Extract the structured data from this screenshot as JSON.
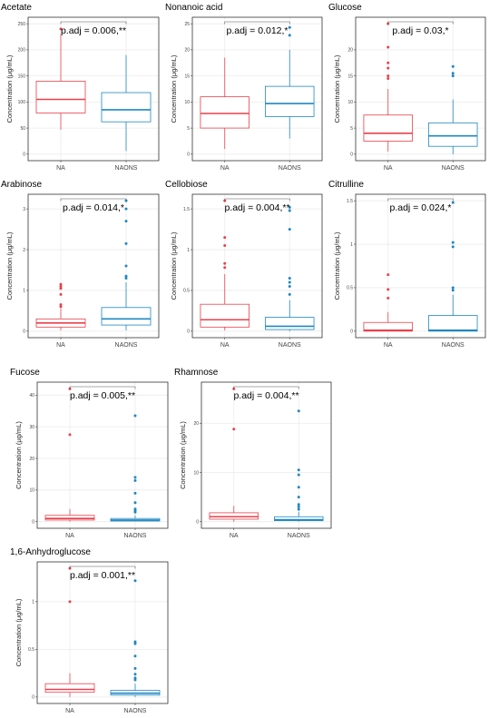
{
  "colors": {
    "NA": "#e8414b",
    "NAONS": "#1f87c2",
    "grid": "#ebebeb",
    "frame": "#333333",
    "bracket": "#555555"
  },
  "chart_data": [
    {
      "type": "box",
      "title": "Acetate",
      "ylabel": "Concentration (μg/mL)",
      "categories": [
        "NA",
        "NAONS"
      ],
      "ylim": [
        0,
        250
      ],
      "yticks": [
        0,
        50,
        100,
        150,
        200,
        250
      ],
      "annotation": "p.adj = 0.006,**",
      "boxes": [
        {
          "name": "NA",
          "min": 47,
          "q1": 79,
          "median": 105,
          "q3": 140,
          "max": 230,
          "outliers": [
            240
          ]
        },
        {
          "name": "NAONS",
          "min": 6,
          "q1": 62,
          "median": 85,
          "q3": 118,
          "max": 190,
          "outliers": []
        }
      ]
    },
    {
      "type": "box",
      "title": "Nonanoic acid",
      "ylabel": "Concentration (μg/mL)",
      "categories": [
        "NA",
        "NAONS"
      ],
      "ylim": [
        0,
        25
      ],
      "yticks": [
        0,
        5,
        10,
        15,
        20,
        25
      ],
      "annotation": "p.adj = 0.012,*",
      "boxes": [
        {
          "name": "NA",
          "min": 1,
          "q1": 5,
          "median": 7.8,
          "q3": 11,
          "max": 18.5,
          "outliers": []
        },
        {
          "name": "NAONS",
          "min": 3,
          "q1": 7.2,
          "median": 9.7,
          "q3": 13,
          "max": 20,
          "outliers": [
            24.3,
            22.8
          ]
        }
      ]
    },
    {
      "type": "box",
      "title": "Glucose",
      "ylabel": "Concentration (μg/mL)",
      "categories": [
        "NA",
        "NAONS"
      ],
      "ylim": [
        0,
        25
      ],
      "yticks": [
        0,
        5,
        10,
        15,
        20
      ],
      "annotation": "p.adj = 0.03,*",
      "boxes": [
        {
          "name": "NA",
          "min": 0.5,
          "q1": 2.5,
          "median": 4,
          "q3": 7.5,
          "max": 12.5,
          "outliers": [
            25,
            20.5,
            17.5,
            16.5,
            15,
            14.5
          ]
        },
        {
          "name": "NAONS",
          "min": 0,
          "q1": 1.5,
          "median": 3.5,
          "q3": 6,
          "max": 10.5,
          "outliers": [
            16.8,
            15.5,
            15
          ]
        }
      ]
    },
    {
      "type": "box",
      "title": "Arabinose",
      "ylabel": "Concentration (μg/mL)",
      "categories": [
        "NA",
        "NAONS"
      ],
      "ylim": [
        0,
        3.2
      ],
      "yticks": [
        0,
        1,
        2,
        3
      ],
      "annotation": "p.adj = 0.014,*",
      "boxes": [
        {
          "name": "NA",
          "min": 0.02,
          "q1": 0.1,
          "median": 0.2,
          "q3": 0.3,
          "max": 0.55,
          "outliers": [
            1.15,
            1.1,
            1.05,
            0.9,
            0.65,
            0.6
          ]
        },
        {
          "name": "NAONS",
          "min": 0.02,
          "q1": 0.15,
          "median": 0.3,
          "q3": 0.58,
          "max": 1.2,
          "outliers": [
            3.2,
            3.0,
            2.7,
            2.15,
            1.6,
            1.35,
            1.3
          ]
        }
      ]
    },
    {
      "type": "box",
      "title": "Cellobiose",
      "ylabel": "Concentration (μg/mL)",
      "categories": [
        "NA",
        "NAONS"
      ],
      "ylim": [
        0,
        1.6
      ],
      "yticks": [
        0,
        0.5,
        1.0,
        1.5
      ],
      "annotation": "p.adj = 0.004,**",
      "boxes": [
        {
          "name": "NA",
          "min": 0.01,
          "q1": 0.05,
          "median": 0.14,
          "q3": 0.33,
          "max": 0.7,
          "outliers": [
            1.6,
            1.15,
            1.05,
            0.83,
            0.78
          ]
        },
        {
          "name": "NAONS",
          "min": 0.0,
          "q1": 0.02,
          "median": 0.06,
          "q3": 0.17,
          "max": 0.38,
          "outliers": [
            1.52,
            1.48,
            1.25,
            0.65,
            0.6,
            0.55,
            0.45
          ]
        }
      ]
    },
    {
      "type": "box",
      "title": "Citrulline",
      "ylabel": "Concentration (μg/mL)",
      "categories": [
        "NA",
        "NAONS"
      ],
      "ylim": [
        0,
        1.5
      ],
      "yticks": [
        0,
        0.5,
        1.0,
        1.5
      ],
      "annotation": "p.adj = 0.024,*",
      "boxes": [
        {
          "name": "NA",
          "min": 0.0,
          "q1": 0.0,
          "median": 0.01,
          "q3": 0.1,
          "max": 0.22,
          "outliers": [
            0.65,
            0.48,
            0.38
          ]
        },
        {
          "name": "NAONS",
          "min": 0.0,
          "q1": 0.0,
          "median": 0.01,
          "q3": 0.18,
          "max": 0.42,
          "outliers": [
            1.48,
            1.02,
            0.97,
            0.5,
            0.47
          ]
        }
      ]
    },
    {
      "type": "box",
      "title": "Fucose",
      "ylabel": "Concentration (μg/mL)",
      "categories": [
        "NA",
        "NAONS"
      ],
      "ylim": [
        0,
        42
      ],
      "yticks": [
        0,
        10,
        20,
        30,
        40
      ],
      "annotation": "p.adj = 0.005,**",
      "boxes": [
        {
          "name": "NA",
          "min": 0,
          "q1": 0.5,
          "median": 1,
          "q3": 2,
          "max": 4,
          "outliers": [
            42,
            27.5
          ]
        },
        {
          "name": "NAONS",
          "min": 0,
          "q1": 0.2,
          "median": 0.5,
          "q3": 1,
          "max": 2,
          "outliers": [
            33.5,
            14,
            13,
            9,
            6,
            4,
            3.5,
            3
          ]
        }
      ]
    },
    {
      "type": "box",
      "title": "Rhamnose",
      "ylabel": "Concentration (μg/mL)",
      "categories": [
        "NA",
        "NAONS"
      ],
      "ylim": [
        0,
        27
      ],
      "yticks": [
        0,
        10,
        20
      ],
      "annotation": "p.adj = 0.004,**",
      "boxes": [
        {
          "name": "NA",
          "min": 0,
          "q1": 0.5,
          "median": 1,
          "q3": 1.8,
          "max": 3.2,
          "outliers": [
            27,
            18.8
          ]
        },
        {
          "name": "NAONS",
          "min": 0,
          "q1": 0.2,
          "median": 0.4,
          "q3": 1,
          "max": 2,
          "outliers": [
            22.5,
            10.5,
            9.5,
            7,
            5,
            3.5,
            3,
            2.5
          ]
        }
      ]
    },
    {
      "type": "box",
      "title": "1,6-Anhydroglucose",
      "ylabel": "Concentration (μg/mL)",
      "categories": [
        "NA",
        "NAONS"
      ],
      "ylim": [
        0,
        1.35
      ],
      "yticks": [
        0,
        0.5,
        1.0
      ],
      "annotation": "p.adj = 0.001,**",
      "boxes": [
        {
          "name": "NA",
          "min": 0.0,
          "q1": 0.05,
          "median": 0.08,
          "q3": 0.14,
          "max": 0.25,
          "outliers": [
            1.35,
            1.0
          ]
        },
        {
          "name": "NAONS",
          "min": 0.0,
          "q1": 0.02,
          "median": 0.04,
          "q3": 0.07,
          "max": 0.14,
          "outliers": [
            1.22,
            0.58,
            0.56,
            0.43,
            0.3,
            0.24,
            0.2,
            0.18
          ]
        }
      ]
    }
  ]
}
